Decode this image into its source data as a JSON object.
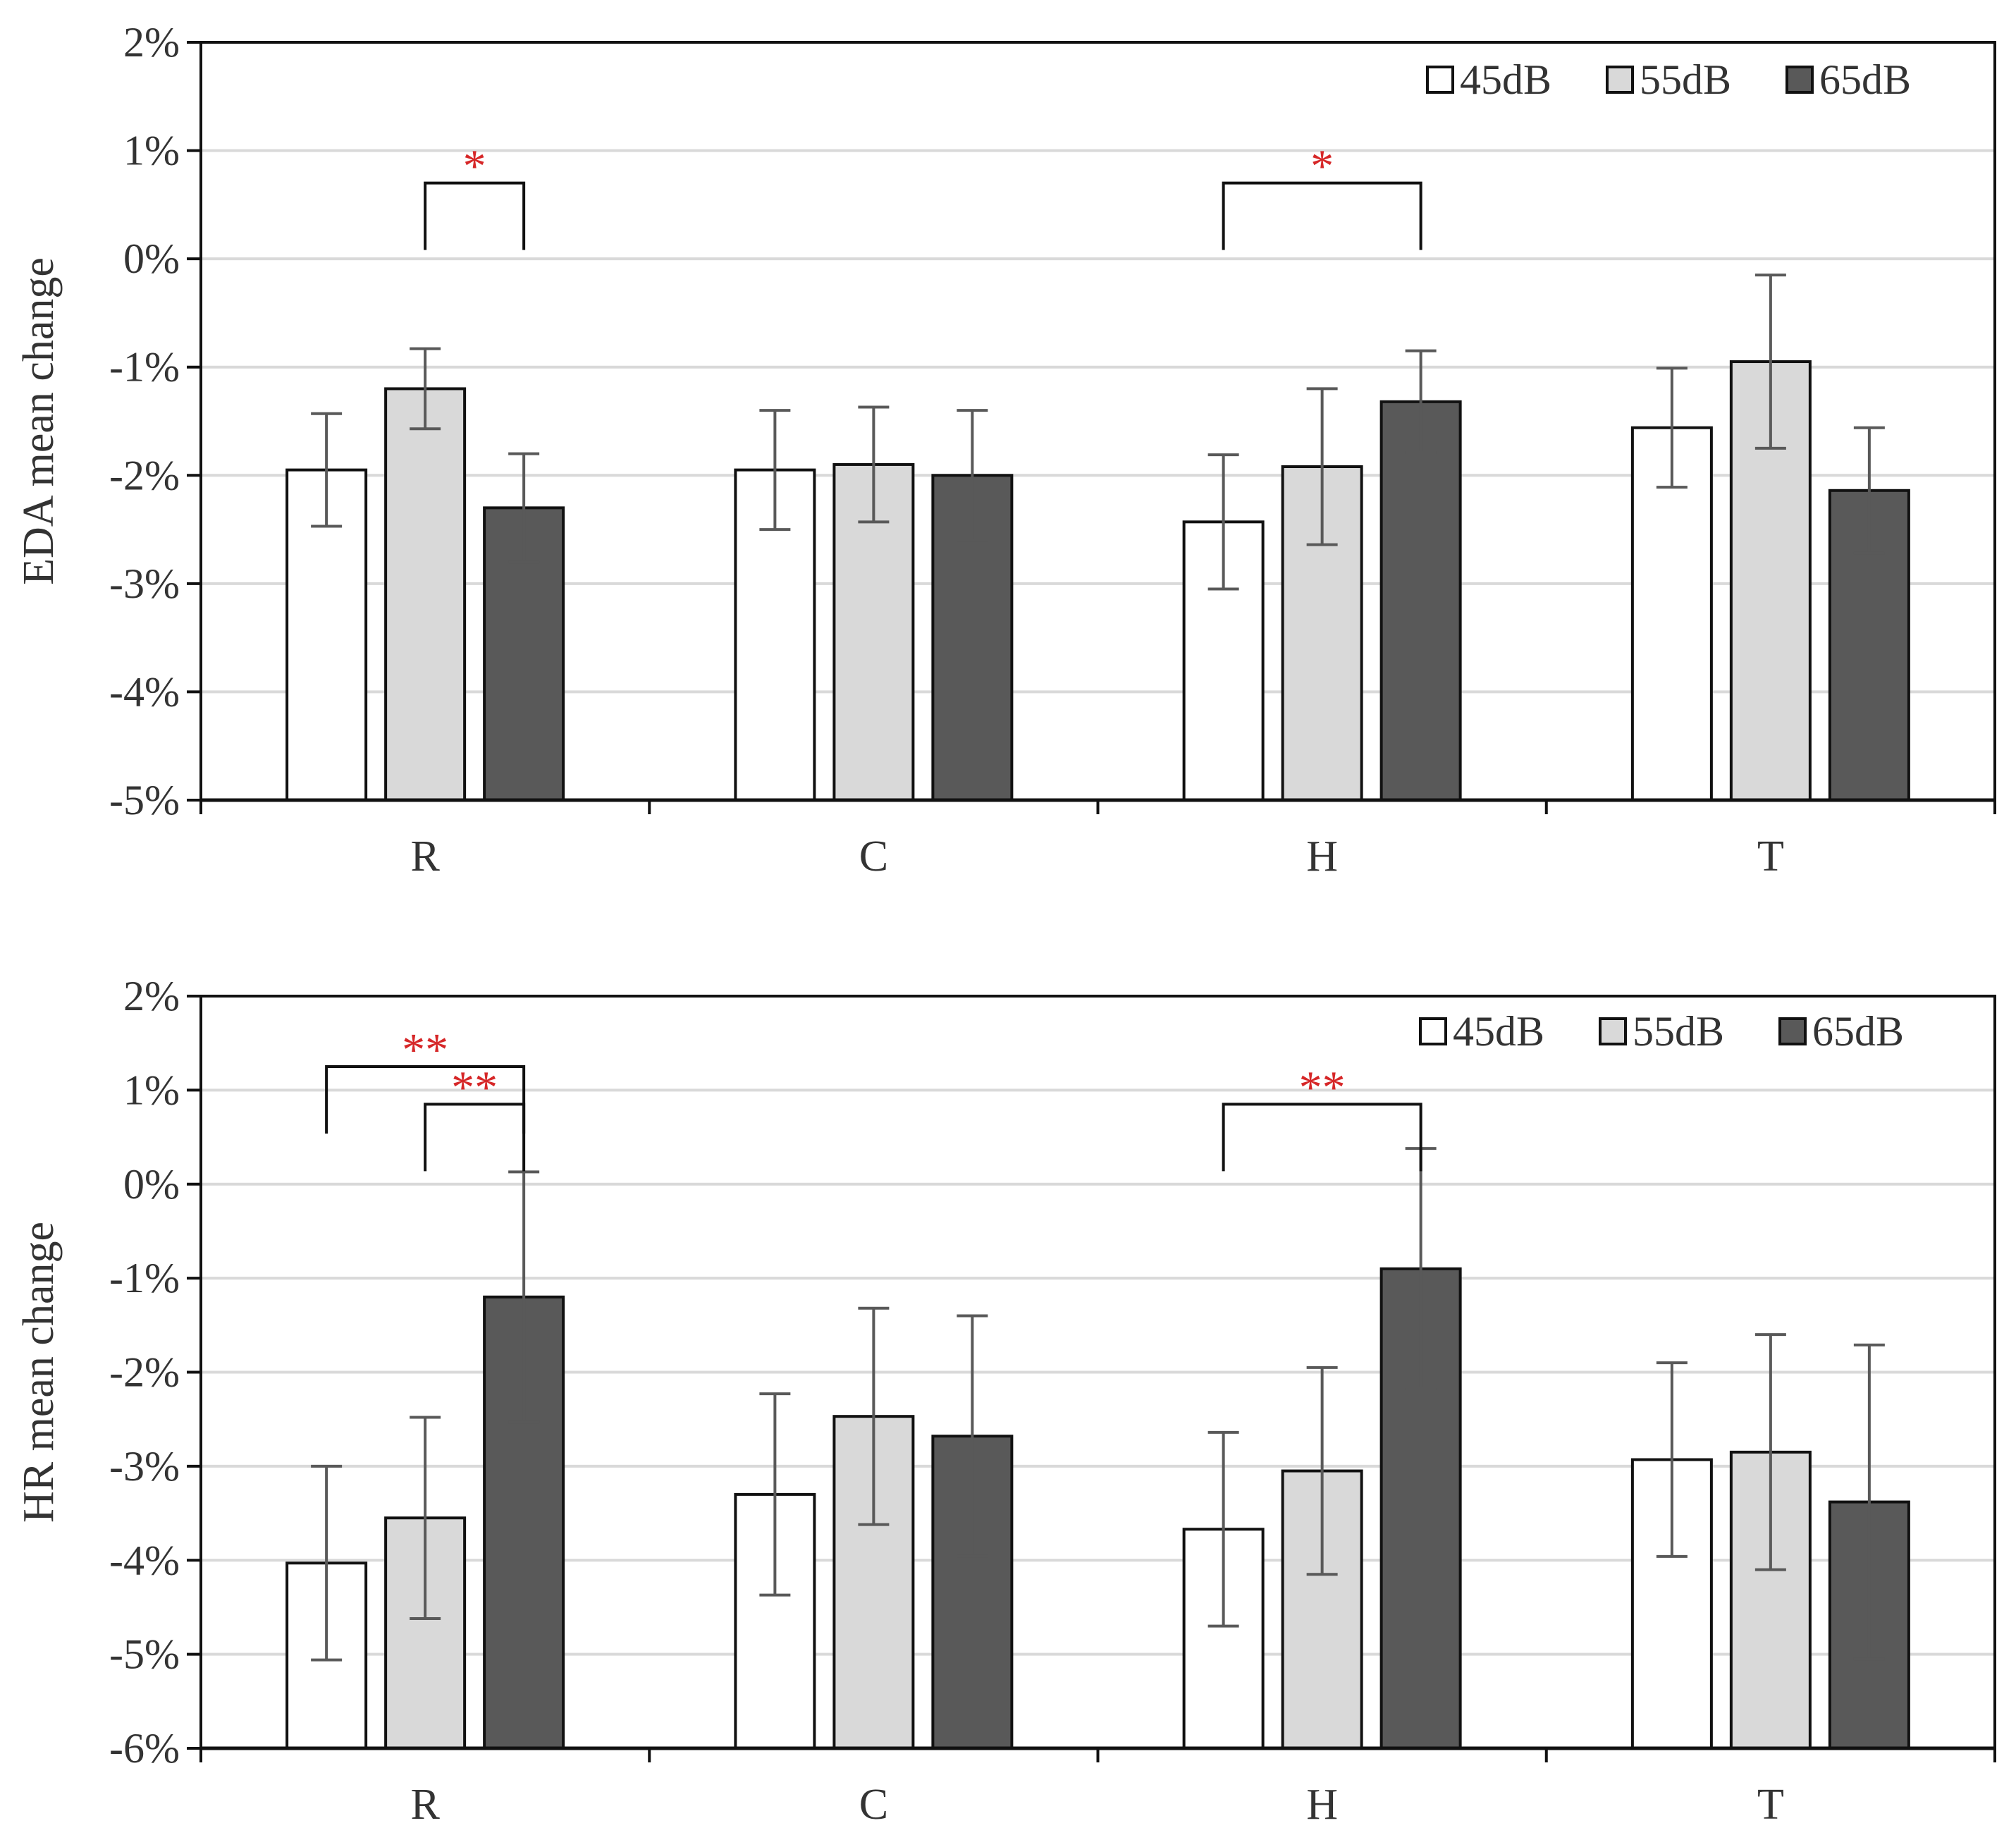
{
  "chart_data": [
    {
      "type": "bar",
      "id": "eda",
      "ylabel": "EDA mean change",
      "ylim": [
        -5,
        2
      ],
      "yticks": [
        2,
        1,
        0,
        -1,
        -2,
        -3,
        -4,
        -5
      ],
      "ytick_labels": [
        "2%",
        "1%",
        "0%",
        "-1%",
        "-2%",
        "-3%",
        "-4%",
        "-5%"
      ],
      "grid": true,
      "legend_position": "top-right",
      "categories": [
        "R",
        "C",
        "H",
        "T"
      ],
      "series": [
        {
          "name": "45dB",
          "color": "#ffffff",
          "values": [
            -1.95,
            -1.95,
            -2.43,
            -1.56
          ],
          "errors": [
            0.52,
            0.55,
            0.62,
            0.55
          ]
        },
        {
          "name": "55dB",
          "color": "#d9d9d9",
          "values": [
            -1.2,
            -1.9,
            -1.92,
            -0.95
          ],
          "errors": [
            0.37,
            0.53,
            0.72,
            0.8
          ]
        },
        {
          "name": "65dB",
          "color": "#595959",
          "values": [
            -2.3,
            -2.0,
            -1.32,
            -2.14
          ],
          "errors": [
            0.5,
            0.6,
            0.47,
            0.58
          ]
        }
      ],
      "significance": [
        {
          "category": "R",
          "from_series": 1,
          "to_series": 2,
          "label": "*",
          "level": 0.7
        },
        {
          "category": "H",
          "from_series": 0,
          "to_series": 2,
          "label": "*",
          "level": 0.7
        }
      ]
    },
    {
      "type": "bar",
      "id": "hr",
      "ylabel": "HR mean change",
      "ylim": [
        -6,
        2
      ],
      "yticks": [
        2,
        1,
        0,
        -1,
        -2,
        -3,
        -4,
        -5,
        -6
      ],
      "ytick_labels": [
        "2%",
        "1%",
        "0%",
        "-1%",
        "-2%",
        "-3%",
        "-4%",
        "-5%",
        "-6%"
      ],
      "grid": true,
      "legend_position": "top-right",
      "categories": [
        "R",
        "C",
        "H",
        "T"
      ],
      "series": [
        {
          "name": "45dB",
          "color": "#ffffff",
          "values": [
            -4.03,
            -3.3,
            -3.67,
            -2.93
          ],
          "errors": [
            1.03,
            1.07,
            1.03,
            1.03
          ]
        },
        {
          "name": "55dB",
          "color": "#d9d9d9",
          "values": [
            -3.55,
            -2.47,
            -3.05,
            -2.85
          ],
          "errors": [
            1.07,
            1.15,
            1.1,
            1.25
          ]
        },
        {
          "name": "65dB",
          "color": "#595959",
          "values": [
            -1.2,
            -2.68,
            -0.9,
            -3.38
          ],
          "errors": [
            1.33,
            1.28,
            1.28,
            1.67
          ]
        }
      ],
      "significance": [
        {
          "category": "R",
          "from_series": 0,
          "to_series": 2,
          "label": "**",
          "level": 1.25
        },
        {
          "category": "R",
          "from_series": 1,
          "to_series": 2,
          "label": "**",
          "level": 0.85
        },
        {
          "category": "H",
          "from_series": 0,
          "to_series": 2,
          "label": "**",
          "level": 0.85
        }
      ]
    }
  ]
}
